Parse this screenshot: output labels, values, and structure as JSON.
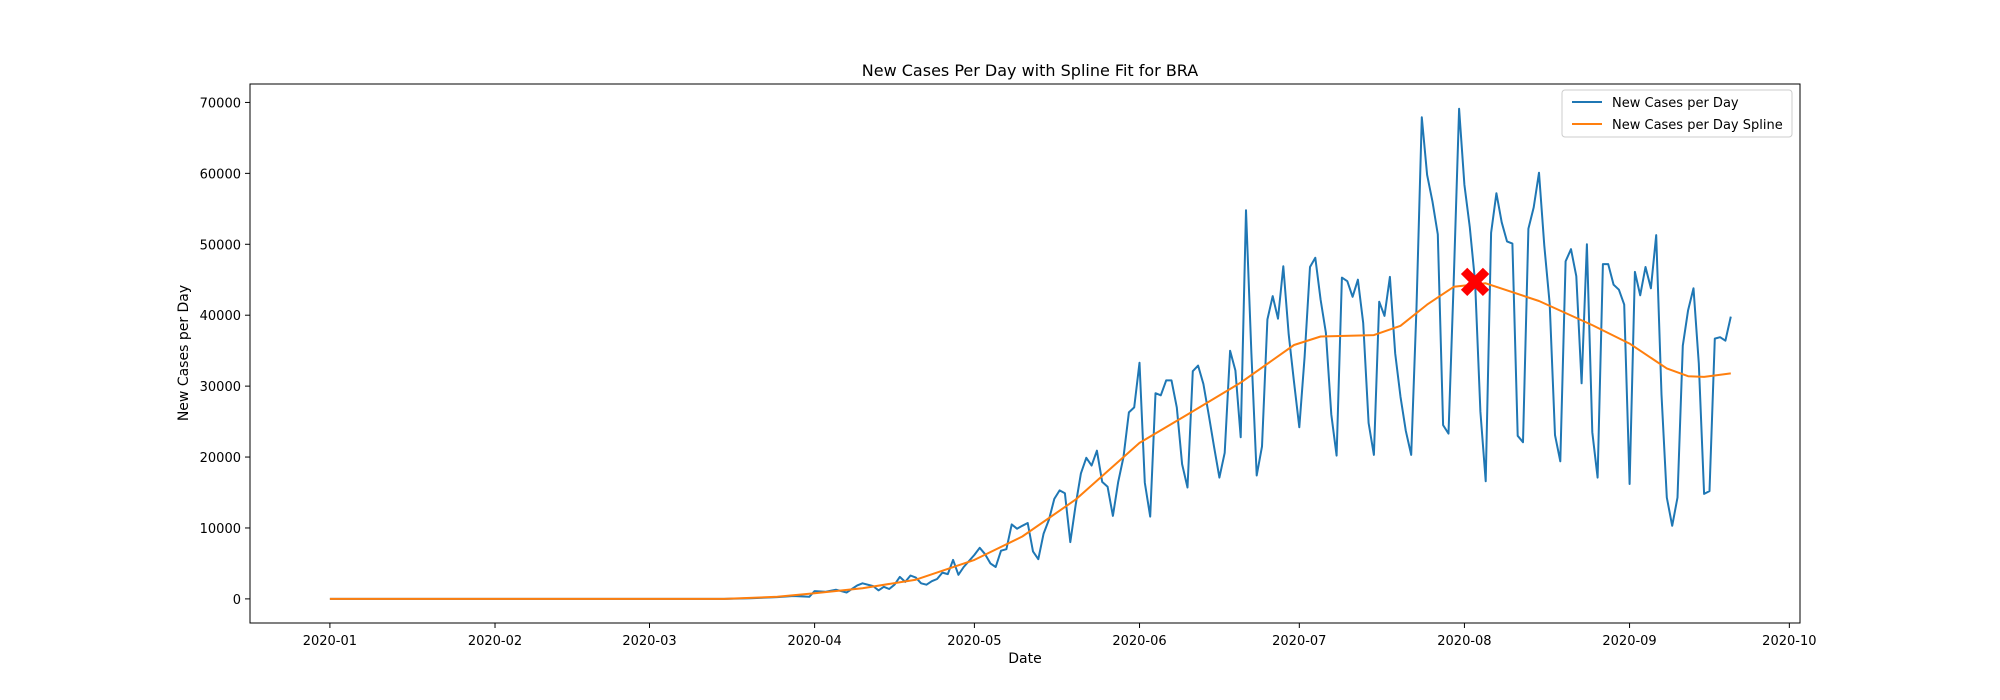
{
  "chart_data": {
    "type": "line",
    "title": "New Cases Per Day with Spline Fit for BRA",
    "xlabel": "Date",
    "ylabel": "New Cases per Day",
    "x_tick_labels": [
      "2020-01",
      "2020-02",
      "2020-03",
      "2020-04",
      "2020-05",
      "2020-06",
      "2020-07",
      "2020-08",
      "2020-09",
      "2020-10"
    ],
    "x_tick_dates": [
      "2020-01-01",
      "2020-02-01",
      "2020-03-01",
      "2020-04-01",
      "2020-05-01",
      "2020-06-01",
      "2020-07-01",
      "2020-08-01",
      "2020-09-01",
      "2020-10-01"
    ],
    "y_ticks": [
      0,
      10000,
      20000,
      30000,
      40000,
      50000,
      60000,
      70000
    ],
    "xlim": [
      "2019-12-17",
      "2020-10-03"
    ],
    "ylim": [
      -3400,
      72600
    ],
    "grid": false,
    "legend_position": "top-right",
    "series": [
      {
        "name": "New Cases per Day",
        "color": "#1f77b4",
        "points": [
          [
            "2020-01-01",
            0
          ],
          [
            "2020-03-15",
            0
          ],
          [
            "2020-03-20",
            100
          ],
          [
            "2020-03-25",
            250
          ],
          [
            "2020-03-28",
            400
          ],
          [
            "2020-03-31",
            300
          ],
          [
            "2020-04-01",
            1100
          ],
          [
            "2020-04-03",
            1000
          ],
          [
            "2020-04-05",
            1300
          ],
          [
            "2020-04-07",
            900
          ],
          [
            "2020-04-09",
            1900
          ],
          [
            "2020-04-10",
            2200
          ],
          [
            "2020-04-12",
            1800
          ],
          [
            "2020-04-13",
            1200
          ],
          [
            "2020-04-14",
            1700
          ],
          [
            "2020-04-15",
            1400
          ],
          [
            "2020-04-16",
            2000
          ],
          [
            "2020-04-17",
            3100
          ],
          [
            "2020-04-18",
            2400
          ],
          [
            "2020-04-19",
            3300
          ],
          [
            "2020-04-20",
            3000
          ],
          [
            "2020-04-21",
            2200
          ],
          [
            "2020-04-22",
            2000
          ],
          [
            "2020-04-23",
            2500
          ],
          [
            "2020-04-24",
            2800
          ],
          [
            "2020-04-25",
            3700
          ],
          [
            "2020-04-26",
            3500
          ],
          [
            "2020-04-27",
            5500
          ],
          [
            "2020-04-28",
            3400
          ],
          [
            "2020-04-29",
            4500
          ],
          [
            "2020-05-01",
            6200
          ],
          [
            "2020-05-02",
            7200
          ],
          [
            "2020-05-03",
            6300
          ],
          [
            "2020-05-04",
            5000
          ],
          [
            "2020-05-05",
            4500
          ],
          [
            "2020-05-06",
            6800
          ],
          [
            "2020-05-07",
            7000
          ],
          [
            "2020-05-08",
            10500
          ],
          [
            "2020-05-09",
            9900
          ],
          [
            "2020-05-10",
            10300
          ],
          [
            "2020-05-11",
            10700
          ],
          [
            "2020-05-12",
            6700
          ],
          [
            "2020-05-13",
            5600
          ],
          [
            "2020-05-14",
            9200
          ],
          [
            "2020-05-15",
            11200
          ],
          [
            "2020-05-16",
            14100
          ],
          [
            "2020-05-17",
            15300
          ],
          [
            "2020-05-18",
            14900
          ],
          [
            "2020-05-19",
            8000
          ],
          [
            "2020-05-20",
            13200
          ],
          [
            "2020-05-21",
            17700
          ],
          [
            "2020-05-22",
            19900
          ],
          [
            "2020-05-23",
            18800
          ],
          [
            "2020-05-24",
            20900
          ],
          [
            "2020-05-25",
            16500
          ],
          [
            "2020-05-26",
            15800
          ],
          [
            "2020-05-27",
            11700
          ],
          [
            "2020-05-28",
            16500
          ],
          [
            "2020-05-29",
            20000
          ],
          [
            "2020-05-30",
            26300
          ],
          [
            "2020-05-31",
            27000
          ],
          [
            "2020-06-01",
            33300
          ],
          [
            "2020-06-02",
            16400
          ],
          [
            "2020-06-03",
            11600
          ],
          [
            "2020-06-04",
            29000
          ],
          [
            "2020-06-05",
            28700
          ],
          [
            "2020-06-06",
            30800
          ],
          [
            "2020-06-07",
            30800
          ],
          [
            "2020-06-08",
            27000
          ],
          [
            "2020-06-09",
            19000
          ],
          [
            "2020-06-10",
            15700
          ],
          [
            "2020-06-11",
            32100
          ],
          [
            "2020-06-12",
            32900
          ],
          [
            "2020-06-13",
            30300
          ],
          [
            "2020-06-14",
            25900
          ],
          [
            "2020-06-15",
            21400
          ],
          [
            "2020-06-16",
            17100
          ],
          [
            "2020-06-17",
            20600
          ],
          [
            "2020-06-18",
            35000
          ],
          [
            "2020-06-19",
            32200
          ],
          [
            "2020-06-20",
            22800
          ],
          [
            "2020-06-21",
            54800
          ],
          [
            "2020-06-22",
            34600
          ],
          [
            "2020-06-23",
            17400
          ],
          [
            "2020-06-24",
            21500
          ],
          [
            "2020-06-25",
            39400
          ],
          [
            "2020-06-26",
            42700
          ],
          [
            "2020-06-27",
            39500
          ],
          [
            "2020-06-28",
            46900
          ],
          [
            "2020-06-29",
            37300
          ],
          [
            "2020-06-30",
            30600
          ],
          [
            "2020-07-01",
            24200
          ],
          [
            "2020-07-02",
            34100
          ],
          [
            "2020-07-03",
            46800
          ],
          [
            "2020-07-04",
            48100
          ],
          [
            "2020-07-05",
            42200
          ],
          [
            "2020-07-06",
            37500
          ],
          [
            "2020-07-07",
            26000
          ],
          [
            "2020-07-08",
            20200
          ],
          [
            "2020-07-09",
            45300
          ],
          [
            "2020-07-10",
            44800
          ],
          [
            "2020-07-11",
            42600
          ],
          [
            "2020-07-12",
            45000
          ],
          [
            "2020-07-13",
            38900
          ],
          [
            "2020-07-14",
            24800
          ],
          [
            "2020-07-15",
            20300
          ],
          [
            "2020-07-16",
            41900
          ],
          [
            "2020-07-17",
            39900
          ],
          [
            "2020-07-18",
            45400
          ],
          [
            "2020-07-19",
            34600
          ],
          [
            "2020-07-20",
            28500
          ],
          [
            "2020-07-21",
            23700
          ],
          [
            "2020-07-22",
            20300
          ],
          [
            "2020-07-23",
            41100
          ],
          [
            "2020-07-24",
            67900
          ],
          [
            "2020-07-25",
            59800
          ],
          [
            "2020-07-26",
            56000
          ],
          [
            "2020-07-27",
            51400
          ],
          [
            "2020-07-28",
            24500
          ],
          [
            "2020-07-29",
            23300
          ],
          [
            "2020-07-30",
            45200
          ],
          [
            "2020-07-31",
            69100
          ],
          [
            "2020-08-01",
            58400
          ],
          [
            "2020-08-02",
            52400
          ],
          [
            "2020-08-03",
            44700
          ],
          [
            "2020-08-04",
            26400
          ],
          [
            "2020-08-05",
            16600
          ],
          [
            "2020-08-06",
            51600
          ],
          [
            "2020-08-07",
            57200
          ],
          [
            "2020-08-08",
            53100
          ],
          [
            "2020-08-09",
            50400
          ],
          [
            "2020-08-10",
            50100
          ],
          [
            "2020-08-11",
            23000
          ],
          [
            "2020-08-12",
            22100
          ],
          [
            "2020-08-13",
            52200
          ],
          [
            "2020-08-14",
            55200
          ],
          [
            "2020-08-15",
            60100
          ],
          [
            "2020-08-16",
            49800
          ],
          [
            "2020-08-17",
            41600
          ],
          [
            "2020-08-18",
            23100
          ],
          [
            "2020-08-19",
            19400
          ],
          [
            "2020-08-20",
            47600
          ],
          [
            "2020-08-21",
            49300
          ],
          [
            "2020-08-22",
            45500
          ],
          [
            "2020-08-23",
            30400
          ],
          [
            "2020-08-24",
            50000
          ],
          [
            "2020-08-25",
            23500
          ],
          [
            "2020-08-26",
            17100
          ],
          [
            "2020-08-27",
            47200
          ],
          [
            "2020-08-28",
            47200
          ],
          [
            "2020-08-29",
            44300
          ],
          [
            "2020-08-30",
            43600
          ],
          [
            "2020-08-31",
            41500
          ],
          [
            "2020-09-01",
            16200
          ],
          [
            "2020-09-02",
            46100
          ],
          [
            "2020-09-03",
            42800
          ],
          [
            "2020-09-04",
            46800
          ],
          [
            "2020-09-05",
            43800
          ],
          [
            "2020-09-06",
            51300
          ],
          [
            "2020-09-07",
            28800
          ],
          [
            "2020-09-08",
            14300
          ],
          [
            "2020-09-09",
            10300
          ],
          [
            "2020-09-10",
            14300
          ],
          [
            "2020-09-11",
            35700
          ],
          [
            "2020-09-12",
            40700
          ],
          [
            "2020-09-13",
            43800
          ],
          [
            "2020-09-14",
            33200
          ],
          [
            "2020-09-15",
            14800
          ],
          [
            "2020-09-16",
            15200
          ],
          [
            "2020-09-17",
            36700
          ],
          [
            "2020-09-18",
            36900
          ],
          [
            "2020-09-19",
            36400
          ],
          [
            "2020-09-20",
            39800
          ]
        ]
      },
      {
        "name": "New Cases per Day Spline",
        "color": "#ff7f0e",
        "points": [
          [
            "2020-01-01",
            0
          ],
          [
            "2020-03-15",
            0
          ],
          [
            "2020-03-25",
            300
          ],
          [
            "2020-04-01",
            800
          ],
          [
            "2020-04-10",
            1500
          ],
          [
            "2020-04-20",
            2700
          ],
          [
            "2020-05-01",
            5500
          ],
          [
            "2020-05-10",
            8800
          ],
          [
            "2020-05-20",
            14000
          ],
          [
            "2020-06-01",
            22000
          ],
          [
            "2020-06-10",
            26000
          ],
          [
            "2020-06-20",
            30500
          ],
          [
            "2020-06-30",
            35800
          ],
          [
            "2020-07-05",
            37000
          ],
          [
            "2020-07-15",
            37200
          ],
          [
            "2020-07-20",
            38500
          ],
          [
            "2020-07-25",
            41500
          ],
          [
            "2020-07-30",
            44000
          ],
          [
            "2020-08-05",
            44500
          ],
          [
            "2020-08-15",
            42000
          ],
          [
            "2020-08-25",
            38600
          ],
          [
            "2020-09-01",
            36000
          ],
          [
            "2020-09-08",
            32500
          ],
          [
            "2020-09-12",
            31400
          ],
          [
            "2020-09-15",
            31300
          ],
          [
            "2020-09-20",
            31800
          ]
        ]
      }
    ],
    "annotations": [
      {
        "type": "marker",
        "shape": "X",
        "color": "#ff0000",
        "x": "2020-08-03",
        "y": 44700
      }
    ]
  }
}
